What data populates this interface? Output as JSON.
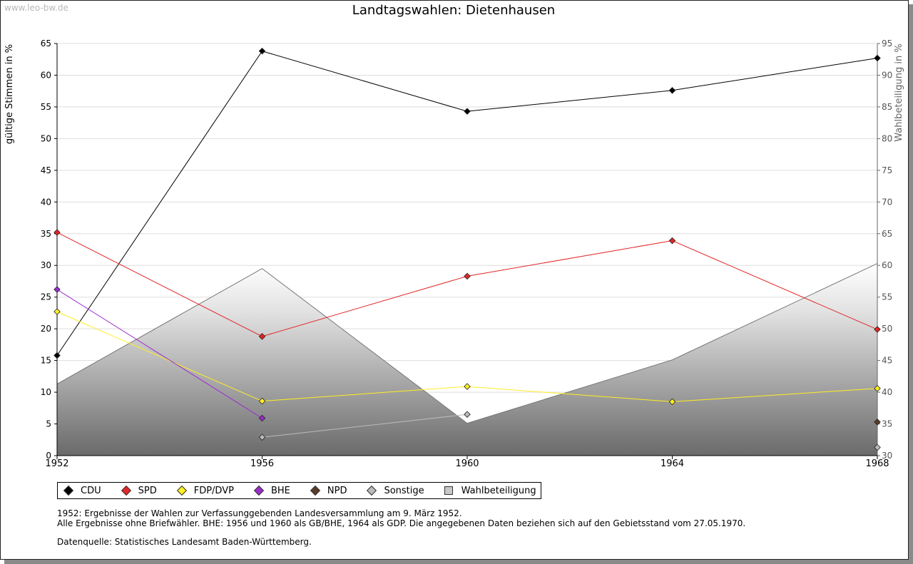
{
  "watermark": "www.leo-bw.de",
  "chart_data": {
    "type": "line",
    "title": "Landtagswahlen: Dietenhausen",
    "ylabel": "gültige Stimmen in %",
    "y2label": "Wahlbeteiligung in %",
    "x": [
      1952,
      1956,
      1960,
      1964,
      1968
    ],
    "ylim": [
      0,
      65
    ],
    "y2lim": [
      30,
      95
    ],
    "yticks": [
      0,
      5,
      10,
      15,
      20,
      25,
      30,
      35,
      40,
      45,
      50,
      55,
      60,
      65
    ],
    "y2ticks": [
      30,
      35,
      40,
      45,
      50,
      55,
      60,
      65,
      70,
      75,
      80,
      85,
      90,
      95
    ],
    "grid": true,
    "legend_position": "bottom",
    "series": [
      {
        "name": "CDU",
        "color": "#000000",
        "values": [
          15.8,
          63.8,
          54.3,
          57.6,
          62.7
        ]
      },
      {
        "name": "SPD",
        "color": "#e32626",
        "values": [
          35.2,
          18.8,
          28.3,
          33.9,
          19.9
        ]
      },
      {
        "name": "FDP/DVP",
        "color": "#ffee22",
        "values": [
          22.7,
          8.6,
          10.9,
          8.5,
          10.6
        ]
      },
      {
        "name": "BHE",
        "color": "#9b2ecb",
        "values": [
          26.2,
          5.9,
          null,
          null,
          null
        ]
      },
      {
        "name": "NPD",
        "color": "#5a3a28",
        "values": [
          null,
          null,
          null,
          null,
          5.3
        ]
      },
      {
        "name": "Sonstige",
        "color": "#bbbbbb",
        "values": [
          null,
          2.9,
          6.5,
          null,
          1.3
        ]
      }
    ],
    "turnout": {
      "name": "Wahlbeteiligung",
      "values": [
        41.3,
        59.5,
        35.1,
        45.1,
        60.3
      ]
    }
  },
  "notes": {
    "line1": "1952: Ergebnisse der Wahlen zur Verfassunggebenden Landesversammlung am 9. März 1952.",
    "line2": "Alle Ergebnisse ohne Briefwähler. BHE: 1956 und 1960 als GB/BHE, 1964 als GDP. Die angegebenen Daten beziehen sich auf den Gebietsstand vom 27.05.1970.",
    "source": "Datenquelle: Statistisches Landesamt Baden-Württemberg."
  }
}
